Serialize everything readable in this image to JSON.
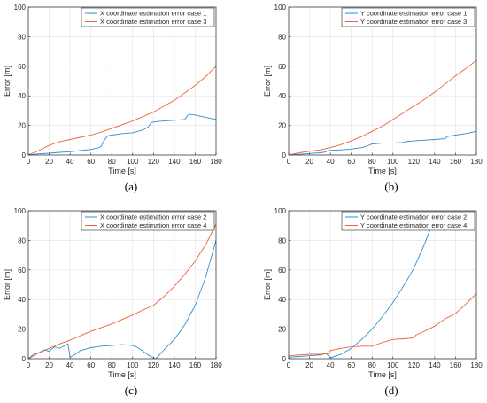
{
  "colors": {
    "case_a": "#2f8fd0",
    "case_b": "#e8643a",
    "grid": "#e2e2e2",
    "axis": "#262626"
  },
  "chart_data": [
    {
      "type": "line",
      "caption": "(a)",
      "xlabel": "Time [s]",
      "ylabel": "Error [m]",
      "xlim": [
        0,
        180
      ],
      "ylim": [
        0,
        100
      ],
      "xticks": [
        0,
        20,
        40,
        60,
        80,
        100,
        120,
        140,
        160,
        180
      ],
      "yticks": [
        0,
        20,
        40,
        60,
        80,
        100
      ],
      "grid": true,
      "legend_position": "top-right",
      "series": [
        {
          "name": "X coordinate estimation error case 1",
          "color": "#2f8fd0",
          "x": [
            0,
            10,
            20,
            30,
            40,
            50,
            60,
            68,
            70,
            72,
            76,
            80,
            90,
            100,
            110,
            115,
            118,
            122,
            130,
            140,
            150,
            153,
            155,
            160,
            170,
            180
          ],
          "y": [
            0,
            0.8,
            1.2,
            1.8,
            2.2,
            3,
            3.8,
            5,
            6,
            9,
            13,
            13.5,
            14.5,
            15,
            17,
            19,
            22,
            22.5,
            23,
            23.5,
            24,
            27,
            27.5,
            27,
            25.5,
            24
          ]
        },
        {
          "name": "X coordinate estimation error case 3",
          "color": "#e8643a",
          "x": [
            0,
            10,
            20,
            30,
            40,
            50,
            60,
            70,
            80,
            90,
            100,
            110,
            120,
            130,
            140,
            150,
            160,
            170,
            180
          ],
          "y": [
            0,
            3,
            6.5,
            9,
            10.5,
            12,
            13.5,
            15.5,
            18,
            20.5,
            23,
            26,
            29,
            33,
            37,
            42,
            47,
            53,
            60
          ]
        }
      ]
    },
    {
      "type": "line",
      "caption": "(b)",
      "xlabel": "Time [s]",
      "ylabel": "Error [m]",
      "xlim": [
        0,
        180
      ],
      "ylim": [
        0,
        100
      ],
      "xticks": [
        0,
        20,
        40,
        60,
        80,
        100,
        120,
        140,
        160,
        180
      ],
      "yticks": [
        0,
        20,
        40,
        60,
        80,
        100
      ],
      "grid": true,
      "legend_position": "top-right",
      "series": [
        {
          "name": "Y coordinate estimation error case 1",
          "color": "#2f8fd0",
          "x": [
            0,
            10,
            20,
            30,
            35,
            38,
            50,
            60,
            70,
            75,
            80,
            90,
            100,
            110,
            112,
            120,
            130,
            140,
            150,
            152,
            160,
            170,
            180
          ],
          "y": [
            0,
            0.5,
            1,
            1.5,
            2,
            3,
            3.5,
            4,
            5,
            6,
            7.5,
            8,
            8,
            8.5,
            9,
            9.5,
            10,
            10.5,
            11,
            12.5,
            13.5,
            14.5,
            16
          ]
        },
        {
          "name": "Y coordinate estimation error case 3",
          "color": "#e8643a",
          "x": [
            0,
            10,
            20,
            30,
            40,
            50,
            60,
            70,
            80,
            90,
            100,
            110,
            120,
            130,
            140,
            150,
            160,
            170,
            180
          ],
          "y": [
            0,
            1.5,
            2.5,
            3.5,
            5,
            7,
            9.5,
            12.5,
            16,
            19.5,
            24,
            28.5,
            33,
            37.5,
            42.5,
            48,
            53.5,
            58.5,
            64
          ]
        }
      ]
    },
    {
      "type": "line",
      "caption": "(c)",
      "xlabel": "Time [s]",
      "ylabel": "Error [m]",
      "xlim": [
        0,
        180
      ],
      "ylim": [
        0,
        100
      ],
      "xticks": [
        0,
        20,
        40,
        60,
        80,
        100,
        120,
        140,
        160,
        180
      ],
      "yticks": [
        0,
        20,
        40,
        60,
        80,
        100
      ],
      "grid": true,
      "legend_position": "top-right",
      "series": [
        {
          "name": "X coordinate estimation error case 2",
          "color": "#2f8fd0",
          "x": [
            0,
            5,
            10,
            15,
            20,
            25,
            30,
            35,
            38,
            40,
            45,
            50,
            60,
            70,
            80,
            90,
            100,
            105,
            110,
            115,
            120,
            122,
            125,
            130,
            140,
            150,
            160,
            170,
            180
          ],
          "y": [
            0,
            3,
            4,
            6,
            5,
            8,
            7,
            9,
            10,
            1,
            3,
            5.5,
            7.5,
            8.5,
            9,
            9.5,
            9,
            7.5,
            5,
            2.5,
            0.5,
            0,
            2,
            6,
            13,
            23,
            36,
            55,
            80
          ]
        },
        {
          "name": "X coordinate estimation error case 4",
          "color": "#e8643a",
          "x": [
            0,
            10,
            20,
            30,
            40,
            50,
            60,
            70,
            80,
            90,
            100,
            110,
            120,
            130,
            140,
            150,
            160,
            170,
            180
          ],
          "y": [
            0,
            4,
            7,
            10,
            12.5,
            15.5,
            18.5,
            21,
            23.5,
            26.5,
            29.5,
            33,
            36,
            42,
            49,
            57,
            66,
            77,
            91
          ]
        }
      ]
    },
    {
      "type": "line",
      "caption": "(d)",
      "xlabel": "Time [s]",
      "ylabel": "Error [m]",
      "xlim": [
        0,
        180
      ],
      "ylim": [
        0,
        100
      ],
      "xticks": [
        0,
        20,
        40,
        60,
        80,
        100,
        120,
        140,
        160,
        180
      ],
      "yticks": [
        0,
        20,
        40,
        60,
        80,
        100
      ],
      "grid": true,
      "legend_position": "top-right",
      "series": [
        {
          "name": "Y coordinate estimation error case 2",
          "color": "#2f8fd0",
          "x": [
            0,
            10,
            20,
            30,
            36,
            40,
            50,
            60,
            70,
            80,
            90,
            100,
            110,
            120,
            130,
            137
          ],
          "y": [
            1,
            1.5,
            2,
            2.5,
            3.5,
            0.5,
            3,
            7,
            13,
            20,
            28.5,
            38,
            49,
            61,
            77,
            90
          ]
        },
        {
          "name": "Y coordinate estimation error case 4",
          "color": "#e8643a",
          "x": [
            0,
            10,
            20,
            30,
            38,
            40,
            50,
            60,
            70,
            80,
            90,
            100,
            110,
            120,
            122,
            130,
            140,
            150,
            160,
            170,
            180
          ],
          "y": [
            2,
            2.5,
            3,
            3,
            3.5,
            5.5,
            7,
            8,
            8.5,
            8.5,
            11,
            13,
            13.5,
            14,
            16,
            18.5,
            22,
            27,
            30.5,
            37,
            44
          ]
        }
      ]
    }
  ]
}
